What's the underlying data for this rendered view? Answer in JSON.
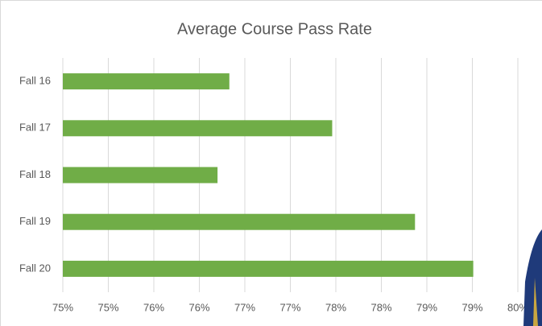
{
  "chart_data": {
    "type": "bar",
    "orientation": "horizontal",
    "title": "Average Course Pass Rate",
    "categories": [
      "Fall 16",
      "Fall 17",
      "Fall 18",
      "Fall 19",
      "Fall 20"
    ],
    "values": [
      76.33,
      77.46,
      76.2,
      78.37,
      79.01
    ],
    "color": "#70ad47",
    "xlim": [
      74.5,
      79.5
    ],
    "xticks": [
      {
        "value": 74.5,
        "label": "75%"
      },
      {
        "value": 75,
        "label": "75%"
      },
      {
        "value": 75.5,
        "label": "76%"
      },
      {
        "value": 76,
        "label": "76%"
      },
      {
        "value": 76.5,
        "label": "77%"
      },
      {
        "value": 77,
        "label": "77%"
      },
      {
        "value": 77.5,
        "label": "78%"
      },
      {
        "value": 78,
        "label": "78%"
      },
      {
        "value": 78.5,
        "label": "79%"
      },
      {
        "value": 79,
        "label": "79%"
      },
      {
        "value": 79.5,
        "label": "80%"
      }
    ],
    "grid": true
  }
}
